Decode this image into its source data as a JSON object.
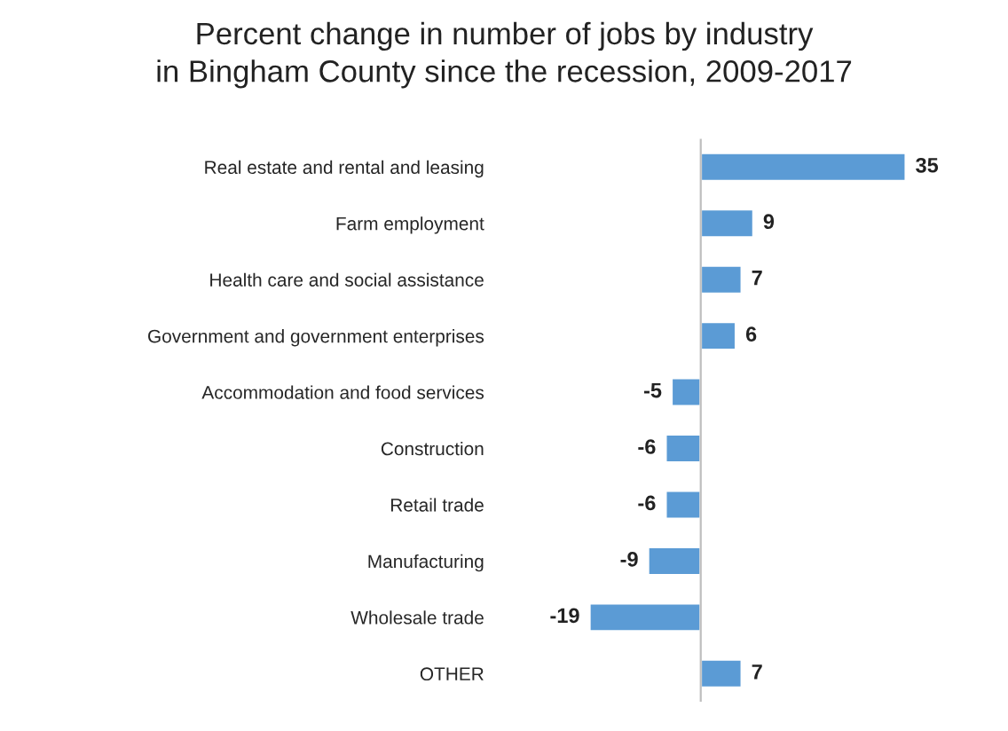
{
  "chart_data": {
    "type": "bar",
    "orientation": "horizontal",
    "title": "Percent change in number of jobs by industry\nin Bingham County since the recession, 2009-2017",
    "categories": [
      "Real estate and rental and leasing",
      "Farm employment",
      "Health care and social assistance",
      "Government and government enterprises",
      "Accommodation and food services",
      "Construction",
      "Retail trade",
      "Manufacturing",
      "Wholesale trade",
      "OTHER"
    ],
    "values": [
      35,
      9,
      7,
      6,
      -5,
      -6,
      -6,
      -9,
      -19,
      7
    ],
    "color": "#5b9bd5",
    "data_labels": true,
    "grid": false,
    "legend": false
  }
}
